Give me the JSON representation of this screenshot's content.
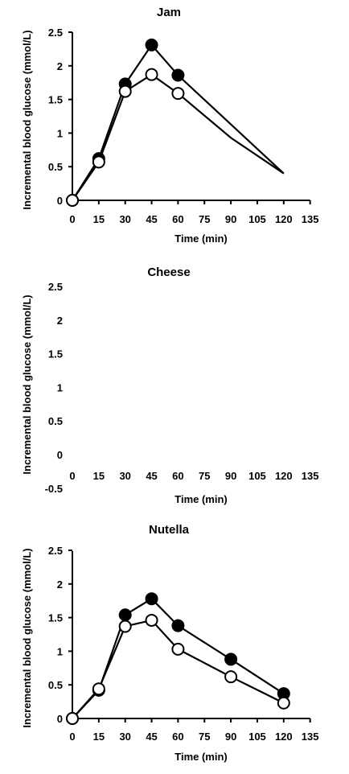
{
  "chart_data": [
    {
      "type": "line",
      "title": "Jam",
      "xlabel": "Time (min)",
      "ylabel": "Incremental blood glucose (mmol/L)",
      "xlim": [
        0,
        135
      ],
      "ylim": [
        0,
        2.5
      ],
      "xticks": [
        0,
        15,
        30,
        45,
        60,
        75,
        90,
        105,
        120,
        135
      ],
      "yticks": [
        "0",
        "0.5",
        "1",
        "1.5",
        "2",
        "2.5"
      ],
      "grid": false,
      "series": [
        {
          "marker": "filled-circle",
          "x": [
            0,
            15,
            30,
            45,
            60,
            120
          ],
          "y": [
            0,
            0.62,
            1.73,
            2.31,
            1.86,
            0.4
          ],
          "markers_at": [
            0,
            15,
            30,
            45,
            60
          ]
        },
        {
          "marker": "open-circle",
          "x": [
            0,
            15,
            30,
            45,
            60,
            90,
            120
          ],
          "y": [
            0,
            0.57,
            1.62,
            1.87,
            1.59,
            0.93,
            0.4
          ],
          "markers_at": [
            0,
            15,
            30,
            45,
            60
          ]
        }
      ]
    },
    {
      "type": "line",
      "title": "Cheese",
      "xlabel": "Time (min)",
      "ylabel": "Incremental blood glucose (mmol/L)",
      "xlim": [
        0,
        135
      ],
      "ylim": [
        -0.5,
        2.5
      ],
      "xticks": [
        0,
        15,
        30,
        45,
        60,
        75,
        90,
        105,
        120,
        135
      ],
      "yticks": [
        "-0.5",
        "0",
        "0.5",
        "1",
        "1.5",
        "2",
        "2.5"
      ],
      "grid": false,
      "series": []
    },
    {
      "type": "line",
      "title": "Nutella",
      "xlabel": "Time (min)",
      "ylabel": "Incremental blood glucose (mmol/L)",
      "xlim": [
        0,
        135
      ],
      "ylim": [
        0,
        2.5
      ],
      "xticks": [
        0,
        15,
        30,
        45,
        60,
        75,
        90,
        105,
        120,
        135
      ],
      "yticks": [
        "0",
        "0.5",
        "1",
        "1.5",
        "2",
        "2.5"
      ],
      "grid": false,
      "series": [
        {
          "marker": "filled-circle",
          "x": [
            0,
            15,
            30,
            45,
            60,
            90,
            120
          ],
          "y": [
            0,
            0.42,
            1.54,
            1.78,
            1.38,
            0.88,
            0.37
          ],
          "markers_at": [
            0,
            15,
            30,
            45,
            60,
            90,
            120
          ]
        },
        {
          "marker": "open-circle",
          "x": [
            0,
            15,
            30,
            45,
            60,
            90,
            120
          ],
          "y": [
            0,
            0.44,
            1.37,
            1.46,
            1.03,
            0.62,
            0.23
          ],
          "markers_at": [
            0,
            15,
            30,
            45,
            60,
            90,
            120
          ]
        }
      ]
    }
  ]
}
